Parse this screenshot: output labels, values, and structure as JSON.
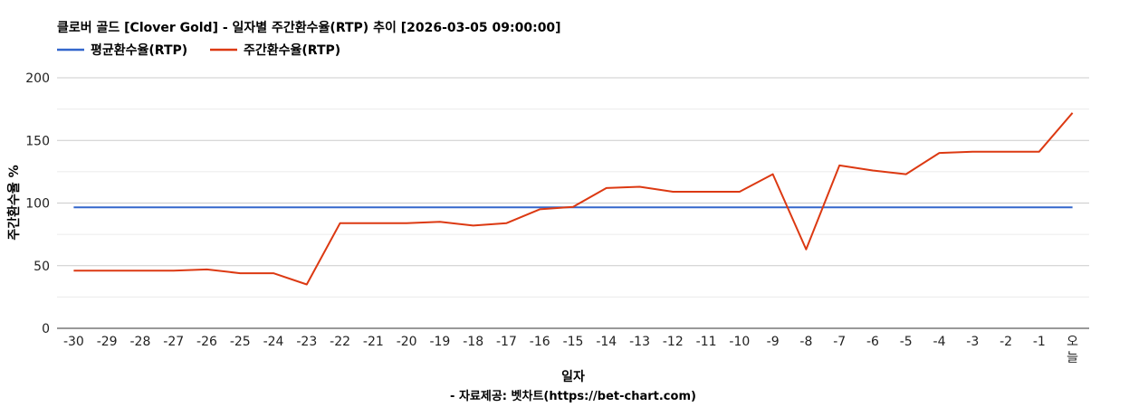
{
  "chart_data": {
    "type": "line",
    "title": "클로버 골드 [Clover Gold] - 일자별 주간환수율(RTP) 추이 [2026-03-05 09:00:00]",
    "xlabel": "일자",
    "ylabel": "주간환수율 %",
    "footer": "- 자료제공: 벳차트(https://bet-chart.com)",
    "ylim": [
      0,
      200
    ],
    "yticks": [
      "0",
      "50",
      "100",
      "150",
      "200"
    ],
    "grid": true,
    "legend_position": "top-left",
    "categories": [
      "-30",
      "-29",
      "-28",
      "-27",
      "-26",
      "-25",
      "-24",
      "-23",
      "-22",
      "-21",
      "-20",
      "-19",
      "-18",
      "-17",
      "-16",
      "-15",
      "-14",
      "-13",
      "-12",
      "-11",
      "-10",
      "-9",
      "-8",
      "-7",
      "-6",
      "-5",
      "-4",
      "-3",
      "-2",
      "-1",
      "오늘"
    ],
    "series": [
      {
        "name": "평균환수율(RTP)",
        "color": "#3366cc",
        "values": [
          96.5,
          96.5,
          96.5,
          96.5,
          96.5,
          96.5,
          96.5,
          96.5,
          96.5,
          96.5,
          96.5,
          96.5,
          96.5,
          96.5,
          96.5,
          96.5,
          96.5,
          96.5,
          96.5,
          96.5,
          96.5,
          96.5,
          96.5,
          96.5,
          96.5,
          96.5,
          96.5,
          96.5,
          96.5,
          96.5,
          96.5
        ]
      },
      {
        "name": "주간환수율(RTP)",
        "color": "#dc3912",
        "values": [
          46,
          46,
          46,
          46,
          47,
          44,
          44,
          35,
          84,
          84,
          84,
          85,
          82,
          84,
          95,
          97,
          112,
          113,
          109,
          109,
          109,
          123,
          63,
          130,
          126,
          123,
          140,
          141,
          141,
          141,
          172
        ]
      }
    ]
  }
}
